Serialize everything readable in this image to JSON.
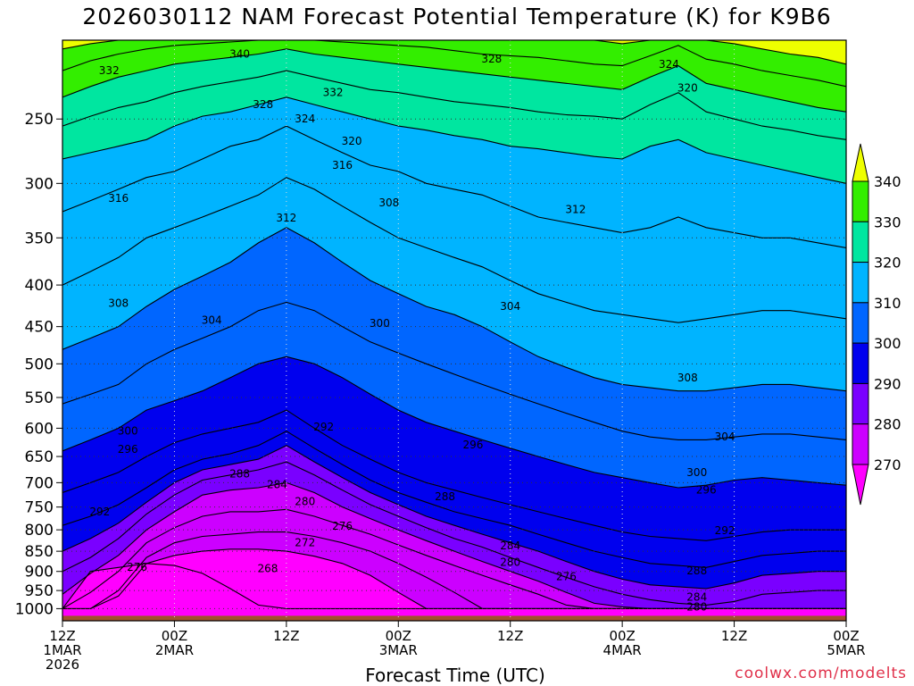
{
  "title": "2026030112 NAM Forecast Potential Temperature (K) for K9B6",
  "xlabel": "Forecast Time (UTC)",
  "credit": "coolwx.com/modelts",
  "chart_data": {
    "type": "contour",
    "variable": "Potential Temperature (K)",
    "y_axis": {
      "quantity": "pressure (hPa)",
      "scale": "log",
      "inverted": true,
      "range": [
        1035,
        200
      ],
      "ticks": [
        250,
        300,
        350,
        400,
        450,
        500,
        550,
        600,
        650,
        700,
        750,
        800,
        850,
        900,
        950,
        1000
      ]
    },
    "x_axis": {
      "range_hours": [
        0,
        84
      ],
      "ticks": [
        {
          "hour": 0,
          "lines": [
            "12Z",
            "1MAR",
            "2026"
          ]
        },
        {
          "hour": 12,
          "lines": [
            "00Z",
            "2MAR"
          ]
        },
        {
          "hour": 24,
          "lines": [
            "12Z"
          ]
        },
        {
          "hour": 36,
          "lines": [
            "00Z",
            "3MAR"
          ]
        },
        {
          "hour": 48,
          "lines": [
            "12Z"
          ]
        },
        {
          "hour": 60,
          "lines": [
            "00Z",
            "4MAR"
          ]
        },
        {
          "hour": 72,
          "lines": [
            "12Z"
          ]
        },
        {
          "hour": 84,
          "lines": [
            "00Z",
            "5MAR"
          ]
        }
      ]
    },
    "grid": true,
    "colorbar": {
      "placement": "right",
      "levels": [
        270,
        280,
        290,
        300,
        310,
        320,
        330,
        340
      ],
      "colors": [
        "#ff00ff",
        "#cc00ff",
        "#7a00ff",
        "#0000ee",
        "#0066ff",
        "#00b4ff",
        "#00e6a0",
        "#33ee00",
        "#eeff00"
      ]
    },
    "surface_fill_color": "#a0522d",
    "contour_interval": 4,
    "isentropes": [
      {
        "theta": 268,
        "p": [
          1000,
          900,
          890,
          880,
          885,
          905,
          945,
          990,
          1000,
          1000,
          1000,
          1000,
          1000,
          1000,
          1000,
          1000,
          1000,
          1000,
          1000,
          1000,
          1000,
          1000,
          1000,
          1000,
          1000,
          1000,
          1000,
          1000,
          1000
        ]
      },
      {
        "theta": 270,
        "p": [
          1000,
          1000,
          965,
          880,
          860,
          850,
          845,
          845,
          850,
          862,
          880,
          910,
          955,
          1000,
          1000,
          1000,
          1000,
          1000,
          1000,
          1000,
          1000,
          1000,
          1000,
          1000,
          1000,
          1000,
          1000,
          1000,
          1000
        ]
      },
      {
        "theta": 272,
        "p": [
          1000,
          1000,
          950,
          865,
          830,
          815,
          810,
          805,
          805,
          815,
          830,
          850,
          880,
          915,
          955,
          1000,
          1000,
          1000,
          1000,
          1000,
          1000,
          1000,
          1000,
          1000,
          1000,
          1000,
          1000,
          1000,
          1000
        ]
      },
      {
        "theta": 276,
        "p": [
          1000,
          955,
          900,
          830,
          795,
          770,
          760,
          760,
          755,
          770,
          790,
          810,
          835,
          860,
          885,
          910,
          935,
          960,
          990,
          1000,
          1000,
          1000,
          1000,
          1000,
          1000,
          1000,
          1000,
          1000,
          1000
        ]
      },
      {
        "theta": 280,
        "p": [
          960,
          905,
          860,
          800,
          760,
          725,
          715,
          710,
          700,
          720,
          750,
          775,
          800,
          825,
          850,
          875,
          900,
          925,
          955,
          985,
          995,
          1000,
          1000,
          1000,
          1000,
          1000,
          1000,
          1000,
          1000
        ]
      },
      {
        "theta": 284,
        "p": [
          900,
          865,
          820,
          765,
          725,
          695,
          685,
          675,
          660,
          685,
          715,
          745,
          770,
          795,
          820,
          840,
          865,
          890,
          915,
          940,
          960,
          975,
          985,
          990,
          980,
          960,
          955,
          950,
          950
        ]
      },
      {
        "theta": 288,
        "p": [
          850,
          820,
          785,
          740,
          700,
          675,
          665,
          655,
          630,
          660,
          690,
          720,
          745,
          770,
          790,
          810,
          830,
          850,
          875,
          900,
          920,
          935,
          940,
          945,
          930,
          910,
          905,
          900,
          900
        ]
      },
      {
        "theta": 292,
        "p": [
          790,
          770,
          745,
          710,
          675,
          655,
          645,
          630,
          605,
          635,
          665,
          695,
          720,
          740,
          760,
          775,
          790,
          810,
          830,
          850,
          865,
          880,
          885,
          890,
          875,
          860,
          855,
          850,
          850
        ]
      },
      {
        "theta": 296,
        "p": [
          720,
          700,
          680,
          650,
          625,
          610,
          600,
          590,
          570,
          600,
          630,
          655,
          680,
          700,
          715,
          730,
          745,
          760,
          775,
          790,
          805,
          815,
          820,
          825,
          815,
          805,
          800,
          800,
          800
        ]
      },
      {
        "theta": 300,
        "p": [
          640,
          620,
          600,
          570,
          555,
          540,
          520,
          500,
          490,
          500,
          520,
          545,
          570,
          590,
          605,
          620,
          635,
          650,
          665,
          680,
          690,
          700,
          710,
          705,
          695,
          690,
          695,
          700,
          705
        ]
      },
      {
        "theta": 304,
        "p": [
          560,
          545,
          530,
          500,
          480,
          465,
          450,
          430,
          420,
          430,
          450,
          470,
          485,
          500,
          515,
          530,
          545,
          560,
          575,
          590,
          605,
          615,
          620,
          620,
          615,
          610,
          610,
          615,
          620
        ]
      },
      {
        "theta": 308,
        "p": [
          480,
          465,
          450,
          425,
          405,
          390,
          375,
          355,
          340,
          355,
          375,
          395,
          410,
          425,
          435,
          450,
          470,
          490,
          505,
          520,
          530,
          535,
          540,
          540,
          535,
          530,
          530,
          535,
          540
        ]
      },
      {
        "theta": 312,
        "p": [
          400,
          385,
          370,
          350,
          340,
          330,
          320,
          310,
          295,
          305,
          320,
          335,
          350,
          360,
          370,
          380,
          395,
          410,
          420,
          430,
          435,
          440,
          445,
          440,
          435,
          430,
          430,
          435,
          440
        ]
      },
      {
        "theta": 316,
        "p": [
          325,
          315,
          305,
          295,
          290,
          280,
          270,
          265,
          255,
          265,
          275,
          285,
          290,
          300,
          305,
          310,
          320,
          330,
          335,
          340,
          345,
          340,
          330,
          340,
          345,
          350,
          350,
          355,
          360
        ]
      },
      {
        "theta": 320,
        "p": [
          280,
          275,
          270,
          265,
          255,
          248,
          245,
          240,
          235,
          240,
          245,
          250,
          255,
          258,
          262,
          265,
          270,
          272,
          275,
          278,
          280,
          270,
          265,
          275,
          280,
          285,
          290,
          295,
          300
        ]
      },
      {
        "theta": 324,
        "p": [
          255,
          248,
          242,
          238,
          232,
          228,
          225,
          222,
          218,
          222,
          226,
          230,
          232,
          235,
          238,
          240,
          242,
          245,
          247,
          248,
          250,
          240,
          232,
          245,
          250,
          255,
          258,
          262,
          265
        ]
      },
      {
        "theta": 328,
        "p": [
          235,
          228,
          222,
          218,
          214,
          212,
          210,
          208,
          205,
          208,
          210,
          212,
          214,
          216,
          218,
          220,
          222,
          224,
          226,
          228,
          230,
          222,
          215,
          226,
          230,
          234,
          238,
          242,
          245
        ]
      },
      {
        "theta": 332,
        "p": [
          218,
          212,
          208,
          205,
          203,
          202,
          201,
          200,
          200,
          200,
          201,
          202,
          203,
          204,
          206,
          208,
          209,
          210,
          212,
          214,
          215,
          209,
          203,
          211,
          214,
          218,
          221,
          224,
          228
        ]
      },
      {
        "theta": 336,
        "p": [
          205,
          202,
          200,
          200,
          200,
          200,
          200,
          200,
          200,
          200,
          200,
          200,
          200,
          200,
          200,
          200,
          200,
          200,
          200,
          200,
          202,
          200,
          200,
          200,
          202,
          205,
          208,
          210,
          214
        ]
      }
    ],
    "contour_labels": [
      {
        "text": "340",
        "hour": 19.0,
        "p": 208
      },
      {
        "text": "332",
        "hour": 5.0,
        "p": 218
      },
      {
        "text": "328",
        "hour": 21.5,
        "p": 240
      },
      {
        "text": "332",
        "hour": 29.0,
        "p": 232
      },
      {
        "text": "324",
        "hour": 26.0,
        "p": 250
      },
      {
        "text": "320",
        "hour": 31.0,
        "p": 266
      },
      {
        "text": "316",
        "hour": 30.0,
        "p": 285
      },
      {
        "text": "328",
        "hour": 46.0,
        "p": 211
      },
      {
        "text": "324",
        "hour": 65.0,
        "p": 214
      },
      {
        "text": "320",
        "hour": 67.0,
        "p": 229
      },
      {
        "text": "316",
        "hour": 6.0,
        "p": 313
      },
      {
        "text": "312",
        "hour": 24.0,
        "p": 331
      },
      {
        "text": "308",
        "hour": 35.0,
        "p": 317
      },
      {
        "text": "312",
        "hour": 55.0,
        "p": 323
      },
      {
        "text": "308",
        "hour": 6.0,
        "p": 421
      },
      {
        "text": "304",
        "hour": 16.0,
        "p": 442
      },
      {
        "text": "300",
        "hour": 34.0,
        "p": 446
      },
      {
        "text": "304",
        "hour": 48.0,
        "p": 425
      },
      {
        "text": "308",
        "hour": 67.0,
        "p": 520
      },
      {
        "text": "300",
        "hour": 7.0,
        "p": 605
      },
      {
        "text": "296",
        "hour": 7.0,
        "p": 637
      },
      {
        "text": "292",
        "hour": 28.0,
        "p": 598
      },
      {
        "text": "296",
        "hour": 44.0,
        "p": 629
      },
      {
        "text": "304",
        "hour": 71.0,
        "p": 615
      },
      {
        "text": "288",
        "hour": 19.0,
        "p": 683
      },
      {
        "text": "284",
        "hour": 23.0,
        "p": 704
      },
      {
        "text": "280",
        "hour": 26.0,
        "p": 738
      },
      {
        "text": "288",
        "hour": 41.0,
        "p": 728
      },
      {
        "text": "292",
        "hour": 4.0,
        "p": 760
      },
      {
        "text": "300",
        "hour": 68.0,
        "p": 680
      },
      {
        "text": "296",
        "hour": 69.0,
        "p": 715
      },
      {
        "text": "276",
        "hour": 30.0,
        "p": 792
      },
      {
        "text": "272",
        "hour": 26.0,
        "p": 830
      },
      {
        "text": "284",
        "hour": 48.0,
        "p": 837
      },
      {
        "text": "292",
        "hour": 71.0,
        "p": 802
      },
      {
        "text": "276",
        "hour": 8.0,
        "p": 889
      },
      {
        "text": "268",
        "hour": 22.0,
        "p": 893
      },
      {
        "text": "280",
        "hour": 48.0,
        "p": 877
      },
      {
        "text": "276",
        "hour": 54.0,
        "p": 913
      },
      {
        "text": "288",
        "hour": 68.0,
        "p": 898
      },
      {
        "text": "284",
        "hour": 68.0,
        "p": 968
      },
      {
        "text": "280",
        "hour": 68.0,
        "p": 995
      }
    ]
  }
}
